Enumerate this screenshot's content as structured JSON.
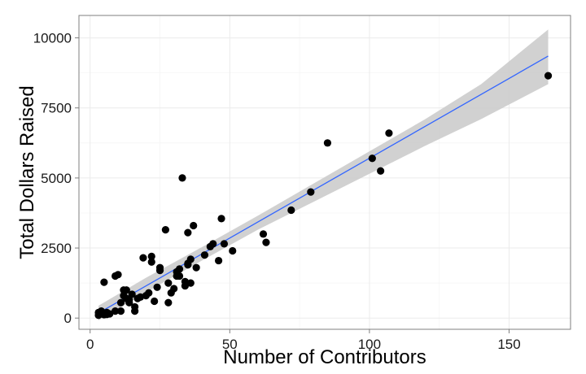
{
  "chart_data": {
    "type": "scatter",
    "title": "",
    "xlabel": "Number of Contributors",
    "ylabel": "Total Dollars Raised",
    "xlim": [
      -4,
      172
    ],
    "ylim": [
      -400,
      10800
    ],
    "x_ticks": [
      0,
      50,
      100,
      150
    ],
    "y_ticks": [
      0,
      2500,
      5000,
      7500,
      10000
    ],
    "x_tick_labels": [
      "0",
      "50",
      "100",
      "150"
    ],
    "y_tick_labels": [
      "0",
      "2500",
      "5000",
      "7500",
      "10000"
    ],
    "grid": true,
    "legend": "none",
    "point_color": "#000000",
    "fit_line_color": "#3366ff",
    "ribbon_color": "#cccccc",
    "points": [
      [
        3,
        100
      ],
      [
        3,
        200
      ],
      [
        4,
        150
      ],
      [
        4,
        250
      ],
      [
        5,
        120
      ],
      [
        5,
        180
      ],
      [
        5,
        1280
      ],
      [
        6,
        200
      ],
      [
        6,
        130
      ],
      [
        7,
        150
      ],
      [
        9,
        250
      ],
      [
        9,
        1500
      ],
      [
        10,
        1550
      ],
      [
        11,
        250
      ],
      [
        11,
        550
      ],
      [
        12,
        800
      ],
      [
        12,
        1000
      ],
      [
        13,
        1000
      ],
      [
        13,
        700
      ],
      [
        14,
        650
      ],
      [
        14,
        550
      ],
      [
        15,
        850
      ],
      [
        16,
        250
      ],
      [
        16,
        400
      ],
      [
        17,
        700
      ],
      [
        18,
        750
      ],
      [
        19,
        2150
      ],
      [
        20,
        800
      ],
      [
        21,
        900
      ],
      [
        22,
        2200
      ],
      [
        22,
        2000
      ],
      [
        23,
        600
      ],
      [
        24,
        1100
      ],
      [
        25,
        1700
      ],
      [
        25,
        1800
      ],
      [
        27,
        3150
      ],
      [
        28,
        550
      ],
      [
        28,
        1250
      ],
      [
        29,
        900
      ],
      [
        30,
        1050
      ],
      [
        31,
        1650
      ],
      [
        31,
        1500
      ],
      [
        32,
        1750
      ],
      [
        32,
        1500
      ],
      [
        33,
        5000
      ],
      [
        34,
        1150
      ],
      [
        34,
        1300
      ],
      [
        35,
        3050
      ],
      [
        35,
        1900
      ],
      [
        35,
        1950
      ],
      [
        36,
        2100
      ],
      [
        36,
        1250
      ],
      [
        37,
        3300
      ],
      [
        38,
        1800
      ],
      [
        41,
        2250
      ],
      [
        43,
        2550
      ],
      [
        44,
        2650
      ],
      [
        46,
        2050
      ],
      [
        47,
        3550
      ],
      [
        48,
        2650
      ],
      [
        51,
        2400
      ],
      [
        62,
        3000
      ],
      [
        63,
        2700
      ],
      [
        72,
        3850
      ],
      [
        79,
        4500
      ],
      [
        85,
        6250
      ],
      [
        101,
        5700
      ],
      [
        104,
        5250
      ],
      [
        107,
        6600
      ],
      [
        164,
        8650
      ]
    ],
    "fit_line": {
      "x": [
        3,
        164
      ],
      "y": [
        180,
        9350
      ]
    },
    "confidence_band": {
      "x": [
        3,
        20,
        40,
        60,
        80,
        100,
        120,
        140,
        164
      ],
      "lower": [
        -80,
        920,
        2050,
        3150,
        4150,
        5150,
        6150,
        7100,
        8350
      ],
      "upper": [
        440,
        1440,
        2530,
        3650,
        4800,
        5950,
        7100,
        8350,
        10300
      ]
    }
  }
}
